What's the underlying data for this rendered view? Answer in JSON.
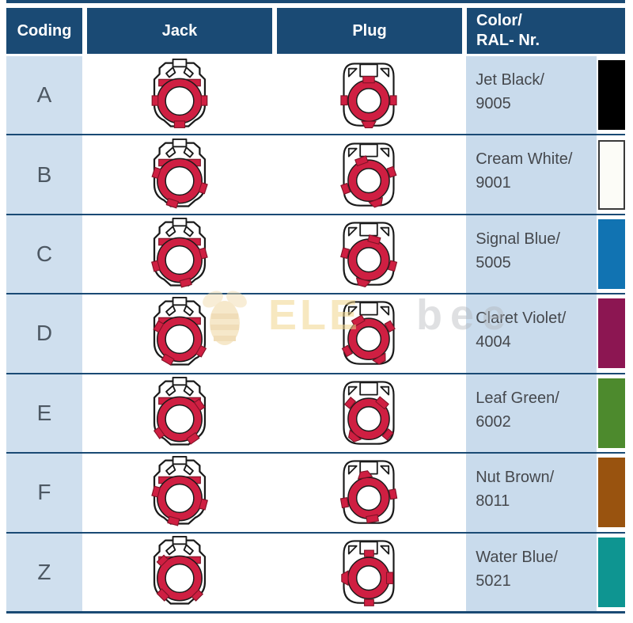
{
  "header": {
    "coding": "Coding",
    "jack": "Jack",
    "plug": "Plug",
    "color_line1": "Color/",
    "color_line2": "RAL- Nr."
  },
  "rows": [
    {
      "code": "A",
      "color_name": "Jet Black/",
      "ral": "9005",
      "swatch_color": "#000000",
      "swatch_border": false,
      "jack_key_rotation": 0,
      "plug_key_rotation": 0
    },
    {
      "code": "B",
      "color_name": "Cream White/",
      "ral": "9001",
      "swatch_color": "#fcfcf7",
      "swatch_border": true,
      "jack_key_rotation": 18,
      "plug_key_rotation": -20
    },
    {
      "code": "C",
      "color_name": "Signal Blue/",
      "ral": "5005",
      "swatch_color": "#1173b2",
      "swatch_border": false,
      "jack_key_rotation": -15,
      "plug_key_rotation": 15
    },
    {
      "code": "D",
      "color_name": "Claret Violet/",
      "ral": "4004",
      "swatch_color": "#8c1652",
      "swatch_border": false,
      "jack_key_rotation": 30,
      "plug_key_rotation": -30
    },
    {
      "code": "E",
      "color_name": "Leaf Green/",
      "ral": "6002",
      "swatch_color": "#4d8a2d",
      "swatch_border": false,
      "jack_key_rotation": -35,
      "plug_key_rotation": 40
    },
    {
      "code": "F",
      "color_name": "Nut Brown/",
      "ral": "8011",
      "swatch_color": "#99530f",
      "swatch_border": false,
      "jack_key_rotation": 15,
      "plug_key_rotation": 170
    },
    {
      "code": "Z",
      "color_name": "Water Blue/",
      "ral": "5021",
      "swatch_color": "#0e9591",
      "swatch_border": false,
      "jack_key_rotation": 45,
      "plug_key_rotation": 90
    }
  ],
  "watermark": {
    "text_left": "ELE",
    "text_right": "bee"
  },
  "colors": {
    "header_bg": "#1a4a74",
    "separator": "#1a4a74",
    "row_label_bg": "#cfdfee",
    "color_cell_bg": "#c9dbec",
    "accent_red": "#cf1f42",
    "accent_red_dark": "#801226",
    "text_dark": "#45484d"
  }
}
